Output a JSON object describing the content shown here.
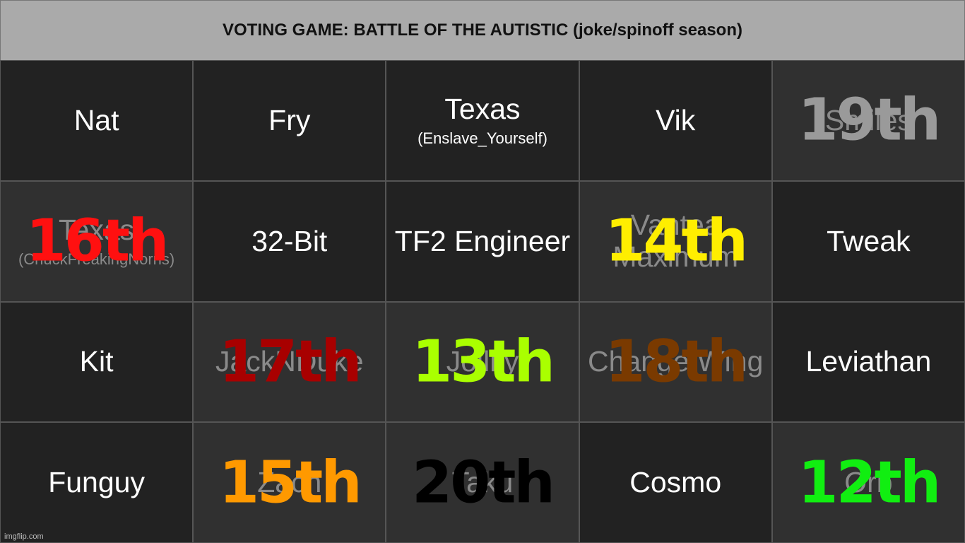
{
  "header": {
    "title": "VOTING GAME: BATTLE OF THE AUTISTIC (joke/spinoff season)"
  },
  "cells": [
    {
      "name": "Nat"
    },
    {
      "name": "Fry"
    },
    {
      "name": "Texas",
      "subname": "(Enslave_Yourself)"
    },
    {
      "name": "Vik"
    },
    {
      "name": "Smiles",
      "rank": "19th",
      "rank_color": "#9a9a9a"
    },
    {
      "name": "Texas",
      "subname": "(ChuckFreakingNorris)",
      "rank": "16th",
      "rank_color": "#ff1010"
    },
    {
      "name": "32-Bit"
    },
    {
      "name": "TF2 Engineer"
    },
    {
      "name": "Vantea Maximum",
      "rank": "14th",
      "rank_color": "#ffee00"
    },
    {
      "name": "Tweak"
    },
    {
      "name": "Kit"
    },
    {
      "name": "JackNDuke",
      "rank": "17th",
      "rank_color": "#a80000"
    },
    {
      "name": "Jollity",
      "rank": "13th",
      "rank_color": "#aaff00"
    },
    {
      "name": "Change Wing",
      "rank": "18th",
      "rank_color": "#7a3a00"
    },
    {
      "name": "Leviathan"
    },
    {
      "name": "Funguy"
    },
    {
      "name": "Zach",
      "rank": "15th",
      "rank_color": "#ff9900"
    },
    {
      "name": "Taku",
      "rank": "20th",
      "rank_color": "#000000"
    },
    {
      "name": "Cosmo"
    },
    {
      "name": "Orb",
      "rank": "12th",
      "rank_color": "#11ee11"
    }
  ],
  "footer": "imgflip.com"
}
